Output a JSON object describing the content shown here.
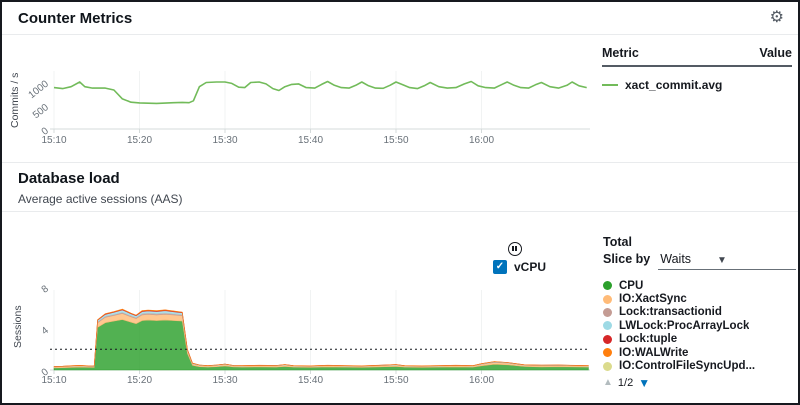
{
  "icons": {
    "gear": "⚙",
    "check": "✓",
    "triangle_down": "▼",
    "triangle_up": "▲"
  },
  "counter": {
    "title": "Counter Metrics",
    "table": {
      "metric_header": "Metric",
      "value_header": "Value",
      "rows": [
        {
          "metric": "xact_commit.avg",
          "value": ""
        }
      ]
    }
  },
  "dbload": {
    "title": "Database load",
    "subtitle": "Average active sessions (AAS)",
    "vcpu_label": "vCPU",
    "total_label": "Total",
    "slice_by_label": "Slice by",
    "slice_by_value": "Waits",
    "pagination": "1/2",
    "legend": [
      {
        "label": "CPU",
        "color": "#2ca02c"
      },
      {
        "label": "IO:XactSync",
        "color": "#ffbb78"
      },
      {
        "label": "Lock:transactionid",
        "color": "#c49c94"
      },
      {
        "label": "LWLock:ProcArrayLock",
        "color": "#9edae5"
      },
      {
        "label": "Lock:tuple",
        "color": "#d62728"
      },
      {
        "label": "IO:WALWrite",
        "color": "#ff7f0e"
      },
      {
        "label": "IO:ControlFileSyncUpd...",
        "color": "#dbdb8d"
      }
    ]
  },
  "chart_data": [
    {
      "type": "line",
      "name": "xact_commit.avg",
      "ylabel": "Commits / s",
      "color": "#72bb5a",
      "ylim": [
        0,
        1100
      ],
      "yticks": [
        0,
        500,
        1000
      ],
      "xtick_minutes": [
        0,
        10,
        20,
        30,
        40,
        50
      ],
      "xtick_labels": [
        "15:10",
        "15:20",
        "15:30",
        "15:40",
        "15:50",
        "16:00"
      ],
      "x": [
        0,
        1,
        2,
        3,
        3.6,
        4.5,
        6,
        7,
        8,
        9,
        10,
        11,
        12,
        13,
        14,
        15,
        15.8,
        16.3,
        17,
        17.8,
        19,
        20,
        20.8,
        21.6,
        22.3,
        23,
        24,
        24.8,
        25.6,
        26.3,
        27,
        27.8,
        28.6,
        29.5,
        30.5,
        31.3,
        32,
        32.8,
        33.6,
        34.5,
        35.3,
        36,
        36.8,
        37.6,
        38.5,
        39.3,
        40,
        40.8,
        41.6,
        42.5,
        43.3,
        44,
        45,
        46,
        47,
        48,
        48.8,
        49.6,
        50.5,
        51.5,
        52.3,
        53,
        53.8,
        54.6,
        55.5,
        56.3,
        57,
        58,
        59,
        60,
        60.6,
        61.4,
        62.3
      ],
      "values": [
        880,
        860,
        900,
        1000,
        900,
        870,
        870,
        830,
        640,
        570,
        555,
        548,
        545,
        552,
        560,
        565,
        560,
        600,
        900,
        990,
        1000,
        1000,
        970,
        890,
        880,
        990,
        1000,
        960,
        860,
        820,
        900,
        950,
        960,
        880,
        870,
        950,
        1010,
        930,
        880,
        870,
        930,
        1000,
        920,
        870,
        865,
        930,
        1000,
        940,
        880,
        860,
        920,
        990,
        900,
        870,
        880,
        960,
        1010,
        920,
        880,
        870,
        940,
        1000,
        930,
        880,
        870,
        940,
        990,
        900,
        870,
        930,
        1000,
        920,
        880
      ]
    },
    {
      "type": "area",
      "name": "Database load (AAS) by wait",
      "ylabel": "Sessions",
      "ylim": [
        0,
        8
      ],
      "yticks": [
        0,
        4,
        8
      ],
      "vcpu_line": 2,
      "xtick_minutes": [
        0,
        10,
        20,
        30,
        40,
        50
      ],
      "xtick_labels": [
        "15:10",
        "15:20",
        "15:30",
        "15:40",
        "15:50",
        "16:00"
      ],
      "x": [
        0,
        1,
        2,
        3,
        4,
        4.7,
        5.1,
        6,
        7,
        8,
        9,
        9.6,
        10.3,
        11,
        12,
        13,
        14,
        15,
        15.6,
        16.2,
        17,
        18,
        19,
        20,
        21,
        22,
        24,
        26,
        27,
        28,
        30,
        32,
        34,
        36,
        38,
        40,
        41,
        43,
        45,
        47,
        49,
        50,
        51.5,
        53,
        55,
        57,
        59,
        61,
        62.5
      ],
      "series": [
        {
          "name": "CPU",
          "color": "#2ca02c",
          "values": [
            0.2,
            0.22,
            0.25,
            0.28,
            0.26,
            0.25,
            4.1,
            4.55,
            4.7,
            4.85,
            4.6,
            4.45,
            4.75,
            4.8,
            4.75,
            4.8,
            4.75,
            4.7,
            1.6,
            0.45,
            0.32,
            0.28,
            0.32,
            0.38,
            0.3,
            0.28,
            0.3,
            0.28,
            0.34,
            0.28,
            0.26,
            0.3,
            0.28,
            0.26,
            0.3,
            0.34,
            0.28,
            0.26,
            0.28,
            0.3,
            0.28,
            0.4,
            0.55,
            0.5,
            0.34,
            0.3,
            0.32,
            0.3,
            0.28
          ]
        },
        {
          "name": "IO:XactSync",
          "color": "#ffbb78",
          "values": [
            0.1,
            0.11,
            0.12,
            0.12,
            0.1,
            0.1,
            0.45,
            0.52,
            0.55,
            0.58,
            0.52,
            0.5,
            0.55,
            0.56,
            0.55,
            0.56,
            0.54,
            0.52,
            0.25,
            0.14,
            0.12,
            0.1,
            0.12,
            0.14,
            0.1,
            0.1,
            0.12,
            0.12,
            0.14,
            0.1,
            0.1,
            0.12,
            0.1,
            0.1,
            0.12,
            0.14,
            0.1,
            0.1,
            0.1,
            0.12,
            0.1,
            0.15,
            0.18,
            0.16,
            0.12,
            0.12,
            0.12,
            0.11,
            0.1
          ]
        },
        {
          "name": "Lock:transactionid",
          "color": "#c49c94",
          "values": [
            0.01,
            0.01,
            0.01,
            0.01,
            0.01,
            0.01,
            0.08,
            0.1,
            0.1,
            0.12,
            0.1,
            0.1,
            0.12,
            0.12,
            0.12,
            0.12,
            0.11,
            0.1,
            0.04,
            0.02,
            0.01,
            0.01,
            0.01,
            0.02,
            0.01,
            0.01,
            0.01,
            0.01,
            0.01,
            0.01,
            0.01,
            0.01,
            0.01,
            0.01,
            0.01,
            0.01,
            0.01,
            0.01,
            0.01,
            0.01,
            0.01,
            0.02,
            0.02,
            0.02,
            0.01,
            0.01,
            0.01,
            0.01,
            0.01
          ]
        },
        {
          "name": "LWLock:ProcArrayLock",
          "color": "#9edae5",
          "values": [
            0.02,
            0.02,
            0.02,
            0.03,
            0.02,
            0.02,
            0.15,
            0.18,
            0.2,
            0.22,
            0.18,
            0.16,
            0.2,
            0.2,
            0.2,
            0.22,
            0.2,
            0.18,
            0.07,
            0.04,
            0.03,
            0.02,
            0.03,
            0.03,
            0.02,
            0.02,
            0.02,
            0.02,
            0.03,
            0.02,
            0.02,
            0.02,
            0.02,
            0.02,
            0.02,
            0.03,
            0.02,
            0.02,
            0.02,
            0.02,
            0.02,
            0.04,
            0.05,
            0.04,
            0.03,
            0.03,
            0.03,
            0.02,
            0.02
          ]
        },
        {
          "name": "Lock:tuple",
          "color": "#d62728",
          "values": [
            0,
            0,
            0,
            0,
            0,
            0,
            0.04,
            0.05,
            0.05,
            0.06,
            0.05,
            0.05,
            0.06,
            0.06,
            0.06,
            0.06,
            0.05,
            0.05,
            0.02,
            0,
            0,
            0,
            0,
            0,
            0,
            0,
            0,
            0,
            0,
            0,
            0,
            0,
            0,
            0,
            0,
            0,
            0,
            0,
            0,
            0,
            0,
            0,
            0,
            0,
            0,
            0,
            0,
            0,
            0
          ]
        },
        {
          "name": "IO:WALWrite",
          "color": "#ff7f0e",
          "values": [
            0.01,
            0.01,
            0.01,
            0.01,
            0.01,
            0.01,
            0.02,
            0.02,
            0.02,
            0.03,
            0.02,
            0.02,
            0.03,
            0.03,
            0.03,
            0.03,
            0.03,
            0.02,
            0.01,
            0.01,
            0.01,
            0.01,
            0.01,
            0.01,
            0.01,
            0.01,
            0.01,
            0.01,
            0.01,
            0.01,
            0.01,
            0.01,
            0.01,
            0.01,
            0.01,
            0.01,
            0.01,
            0.01,
            0.01,
            0.01,
            0.01,
            0.01,
            0.01,
            0.01,
            0.01,
            0.01,
            0.01,
            0.01,
            0.01
          ]
        }
      ]
    }
  ]
}
